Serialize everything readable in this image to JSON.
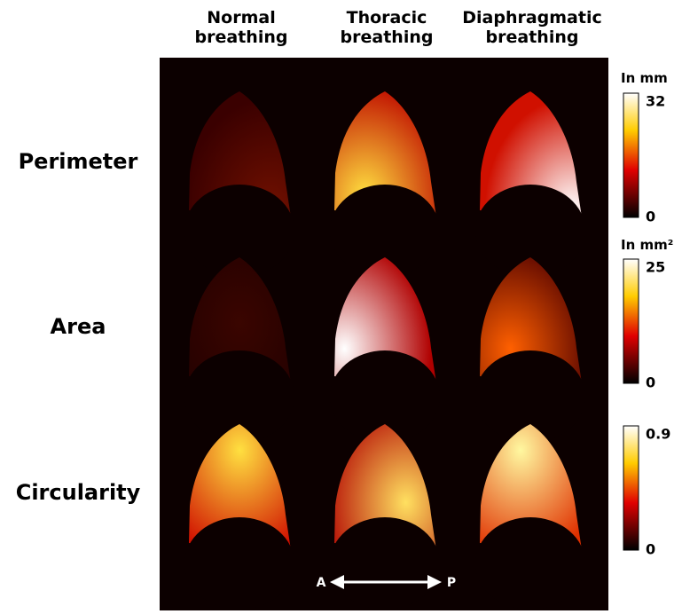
{
  "columns": [
    [
      "Normal",
      "breathing"
    ],
    [
      "Thoracic",
      "breathing"
    ],
    [
      "Diaphragmatic",
      "breathing"
    ]
  ],
  "rows": [
    "Perimeter",
    "Area",
    "Circularity"
  ],
  "colorbars": [
    {
      "unit": "In mm",
      "max": 32,
      "min": 0
    },
    {
      "unit": "In mm²",
      "max": 25,
      "min": 0
    },
    {
      "unit": "",
      "max": 0.9,
      "min": 0
    }
  ],
  "arrow": {
    "left": "A",
    "right": "P"
  }
}
